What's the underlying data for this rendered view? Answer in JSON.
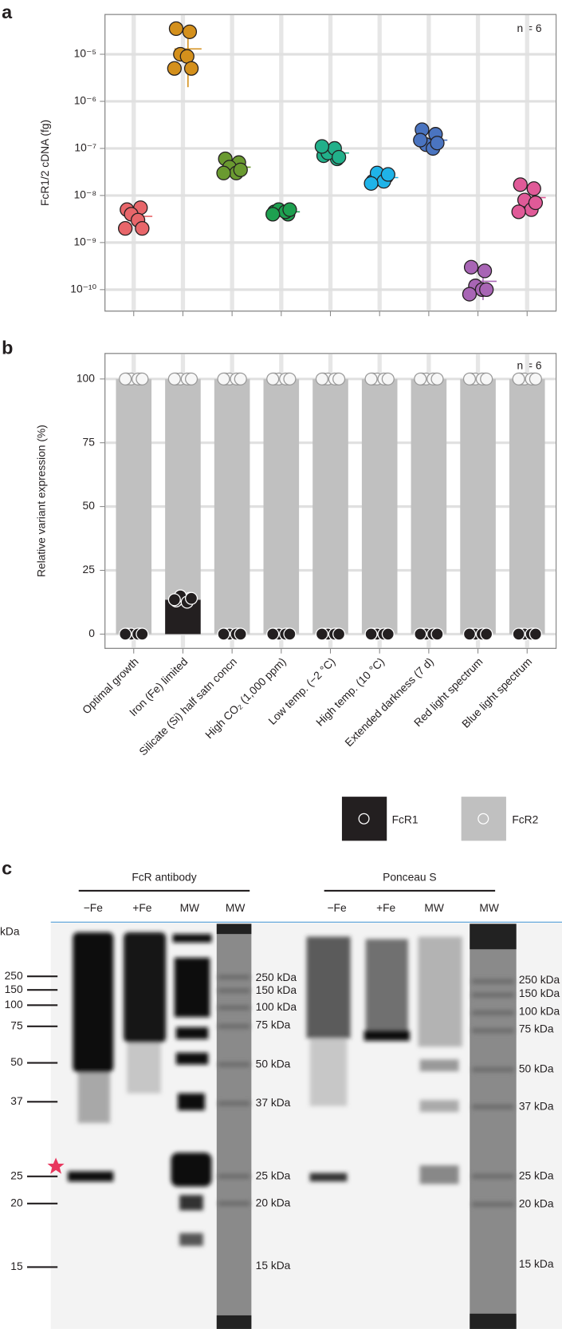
{
  "panels": [
    "a",
    "b",
    "c"
  ],
  "chart_data": [
    {
      "type": "strip",
      "y_label": "FcR1/2 cDNA (fg)",
      "annotation": "n = 6",
      "log_scale": true,
      "grid": true,
      "ylim": [
        3.5e-11,
        7e-05
      ],
      "yticks": [
        {
          "value": 1e-10,
          "label": "10⁻¹⁰"
        },
        {
          "value": 1e-09,
          "label": "10⁻⁹"
        },
        {
          "value": 1e-08,
          "label": "10⁻⁸"
        },
        {
          "value": 1e-07,
          "label": "10⁻⁷"
        },
        {
          "value": 1e-06,
          "label": "10⁻⁶"
        },
        {
          "value": 1e-05,
          "label": "10⁻⁵"
        }
      ],
      "series": [
        {
          "color": "#e8666a",
          "values": [
            5e-09,
            5.5e-09,
            4e-09,
            3e-09,
            2e-09,
            2e-09
          ],
          "mean": 3.6e-09,
          "sd": 1.5e-09
        },
        {
          "color": "#d4901c",
          "values": [
            3.5e-05,
            3e-05,
            1e-05,
            9e-06,
            5e-06,
            5e-06
          ],
          "mean": 1.3e-05,
          "sd": 1.1e-05
        },
        {
          "color": "#6a9a30",
          "values": [
            6e-08,
            5e-08,
            4e-08,
            3e-08,
            3e-08,
            3.5e-08
          ],
          "mean": 4e-08,
          "sd": 1.2e-08
        },
        {
          "color": "#1ea050",
          "values": [
            4.5e-09,
            4e-09,
            5e-09,
            4.5e-09,
            4e-09,
            5e-09
          ],
          "mean": 4.5e-09,
          "sd": 4e-10
        },
        {
          "color": "#21b08a",
          "values": [
            7e-08,
            6e-08,
            8e-08,
            1e-07,
            1.1e-07,
            6.5e-08
          ],
          "mean": 8e-08,
          "sd": 2e-08
        },
        {
          "color": "#1fb3e8",
          "values": [
            2e-08,
            2.5e-08,
            3e-08,
            2e-08,
            1.8e-08,
            2.8e-08
          ],
          "mean": 2.4e-08,
          "sd": 5e-09
        },
        {
          "color": "#4a74c0",
          "values": [
            2.5e-07,
            2e-07,
            1.2e-07,
            1e-07,
            1.5e-07,
            1.3e-07
          ],
          "mean": 1.5e-07,
          "sd": 5e-08
        },
        {
          "color": "#a865b5",
          "values": [
            3e-10,
            2.5e-10,
            1.2e-10,
            1e-10,
            8e-11,
            1e-10
          ],
          "mean": 1.5e-10,
          "sd": 9e-11
        },
        {
          "color": "#e05a98",
          "values": [
            1.7e-08,
            1.4e-08,
            8e-09,
            5e-09,
            4.5e-09,
            7e-09
          ],
          "mean": 9e-09,
          "sd": 5e-09
        }
      ]
    },
    {
      "type": "bar",
      "stacked": true,
      "y_label": "Relative variant expression (%)",
      "annotation": "n = 6",
      "grid": true,
      "categories": [
        "Optimal growth",
        "Iron (Fe) limited",
        "Silicate (Si) half satn concn",
        "High CO₂ (1,000 ppm)",
        "Low temp. (−2 °C)",
        "High temp. (10 °C)",
        "Extended darkness (7 d)",
        "Red light spectrum",
        "Blue light spectrum"
      ],
      "ylim": [
        -5.6,
        110
      ],
      "yticks": [
        0,
        25,
        50,
        75,
        100
      ],
      "series": [
        {
          "name": "FcR1",
          "color": "#231f20",
          "values": [
            0,
            13.5,
            0,
            0,
            0,
            0,
            0,
            0,
            0
          ],
          "points": [
            [
              0,
              0,
              0,
              0,
              0,
              0
            ],
            [
              13,
              14,
              15,
              12.5,
              13.5,
              14
            ],
            [
              0,
              0,
              0,
              0,
              0,
              0
            ],
            [
              0,
              0,
              0,
              0,
              0,
              0
            ],
            [
              0,
              0,
              0,
              0,
              0,
              0
            ],
            [
              0,
              0,
              0,
              0,
              0,
              0
            ],
            [
              0,
              0,
              0,
              0,
              0,
              0
            ],
            [
              0,
              0,
              0,
              0,
              0,
              0
            ],
            [
              0,
              0,
              0,
              0,
              0,
              0
            ]
          ]
        },
        {
          "name": "FcR2",
          "color": "#c0c0c0",
          "values": [
            100,
            86.5,
            100,
            100,
            100,
            100,
            100,
            100,
            100
          ],
          "points": [
            [
              100,
              100,
              100,
              100,
              100,
              100
            ],
            [
              100,
              100,
              100,
              100,
              100,
              100
            ],
            [
              100,
              100,
              100,
              100,
              100,
              100
            ],
            [
              100,
              100,
              100,
              100,
              100,
              100
            ],
            [
              100,
              100,
              100,
              100,
              100,
              100
            ],
            [
              100,
              100,
              100,
              100,
              100,
              100
            ],
            [
              100,
              100,
              100,
              100,
              100,
              100
            ],
            [
              100,
              100,
              100,
              100,
              100,
              100
            ],
            [
              100,
              100,
              100,
              100,
              100,
              100
            ]
          ]
        }
      ]
    }
  ],
  "gel": {
    "left_title": "FcR antibody",
    "right_title": "Ponceau S",
    "left_lanes": [
      "−Fe",
      "+Fe",
      "MW",
      "MW"
    ],
    "right_lanes": [
      "−Fe",
      "+Fe",
      "MW",
      "MW"
    ],
    "unit": "kDa",
    "ladder": [
      "250",
      "150",
      "100",
      "75",
      "50",
      "37",
      "25",
      "20",
      "15"
    ],
    "left_kda": [
      "250 kDa",
      "150 kDa",
      "100 kDa",
      "75 kDa",
      "50 kDa",
      "37 kDa",
      "25 kDa",
      "20 kDa",
      "15 kDa"
    ],
    "right_kda": [
      "250 kDa",
      "150 kDa",
      "100 kDa",
      "75 kDa",
      "50 kDa",
      "37 kDa",
      "25 kDa",
      "20 kDa",
      "15 kDa"
    ]
  }
}
